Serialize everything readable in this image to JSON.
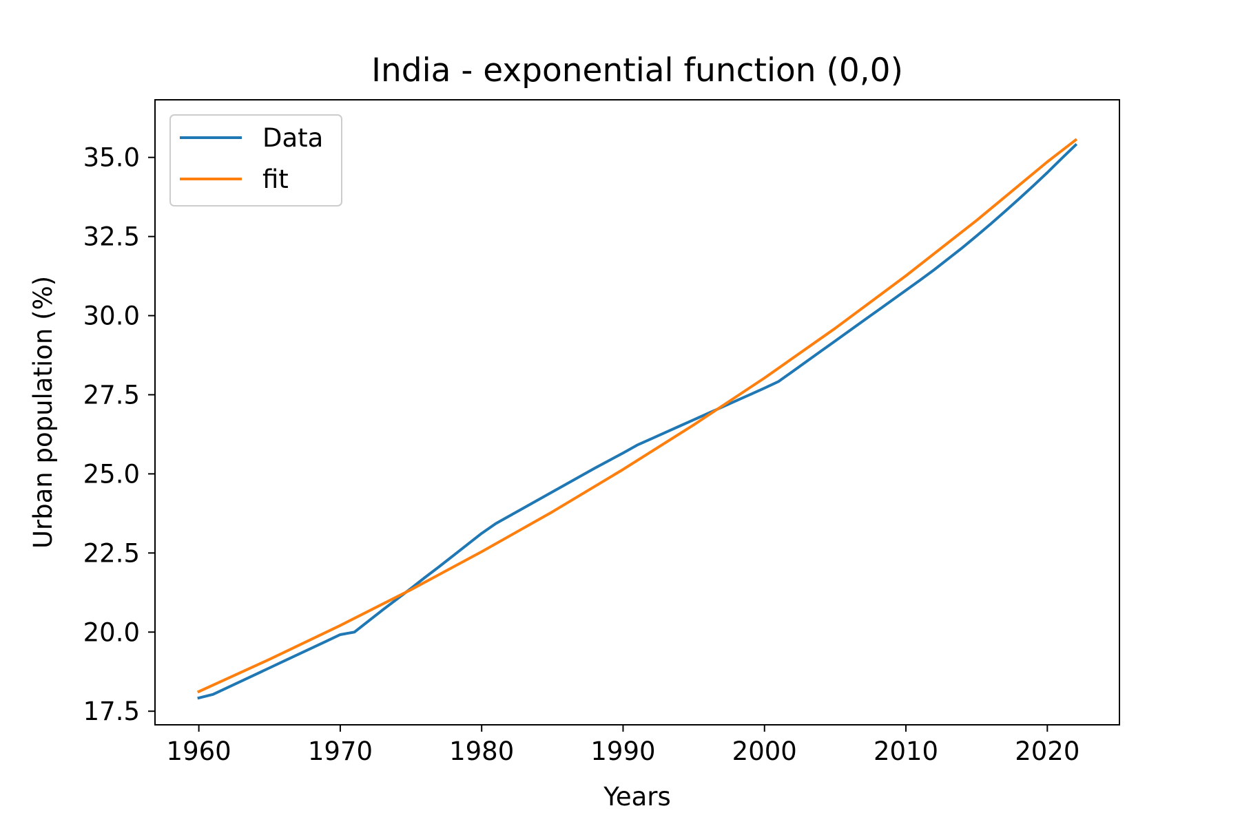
{
  "chart_data": {
    "type": "line",
    "title": "India - exponential function (0,0)",
    "xlabel": "Years",
    "ylabel": "Urban population (%)",
    "xlim": [
      1956.9,
      2025.1
    ],
    "ylim": [
      17.07,
      36.82
    ],
    "x_ticks": [
      1960,
      1970,
      1980,
      1990,
      2000,
      2010,
      2020
    ],
    "y_ticks": [
      17.5,
      20.0,
      22.5,
      25.0,
      27.5,
      30.0,
      32.5,
      35.0
    ],
    "x_tick_labels": [
      "1960",
      "1970",
      "1980",
      "1990",
      "2000",
      "2010",
      "2020"
    ],
    "y_tick_labels": [
      "17.5",
      "20.0",
      "22.5",
      "25.0",
      "27.5",
      "30.0",
      "32.5",
      "35.0"
    ],
    "grid": false,
    "legend_position": "top-left",
    "series": [
      {
        "name": "Data",
        "color": "#1f77b4",
        "x": [
          1960,
          1961,
          1962,
          1963,
          1964,
          1965,
          1966,
          1967,
          1968,
          1969,
          1970,
          1971,
          1972,
          1973,
          1974,
          1975,
          1976,
          1977,
          1978,
          1979,
          1980,
          1981,
          1982,
          1983,
          1984,
          1985,
          1986,
          1987,
          1988,
          1989,
          1990,
          1991,
          1992,
          1993,
          1994,
          1995,
          1996,
          1997,
          1998,
          1999,
          2000,
          2001,
          2002,
          2003,
          2004,
          2005,
          2006,
          2007,
          2008,
          2009,
          2010,
          2011,
          2012,
          2013,
          2014,
          2015,
          2016,
          2017,
          2018,
          2019,
          2020,
          2021,
          2022
        ],
        "y": [
          17.92,
          18.03,
          18.24,
          18.45,
          18.66,
          18.87,
          19.08,
          19.29,
          19.5,
          19.71,
          19.92,
          20.0,
          20.35,
          20.7,
          21.04,
          21.38,
          21.73,
          22.07,
          22.42,
          22.77,
          23.12,
          23.43,
          23.68,
          23.93,
          24.18,
          24.43,
          24.68,
          24.93,
          25.18,
          25.42,
          25.66,
          25.91,
          26.11,
          26.31,
          26.51,
          26.71,
          26.91,
          27.11,
          27.31,
          27.51,
          27.71,
          27.92,
          28.24,
          28.56,
          28.88,
          29.2,
          29.52,
          29.84,
          30.16,
          30.48,
          30.8,
          31.12,
          31.45,
          31.8,
          32.15,
          32.52,
          32.9,
          33.29,
          33.69,
          34.1,
          34.52,
          34.96,
          35.39
        ]
      },
      {
        "name": "fit",
        "color": "#ff7f0e",
        "x": [
          1960,
          1965,
          1970,
          1975,
          1980,
          1985,
          1990,
          1995,
          2000,
          2005,
          2010,
          2015,
          2020,
          2022
        ],
        "y": [
          18.12,
          19.14,
          20.21,
          21.34,
          22.54,
          23.8,
          25.14,
          26.55,
          28.03,
          29.6,
          31.26,
          33.01,
          34.86,
          35.55
        ]
      }
    ]
  }
}
